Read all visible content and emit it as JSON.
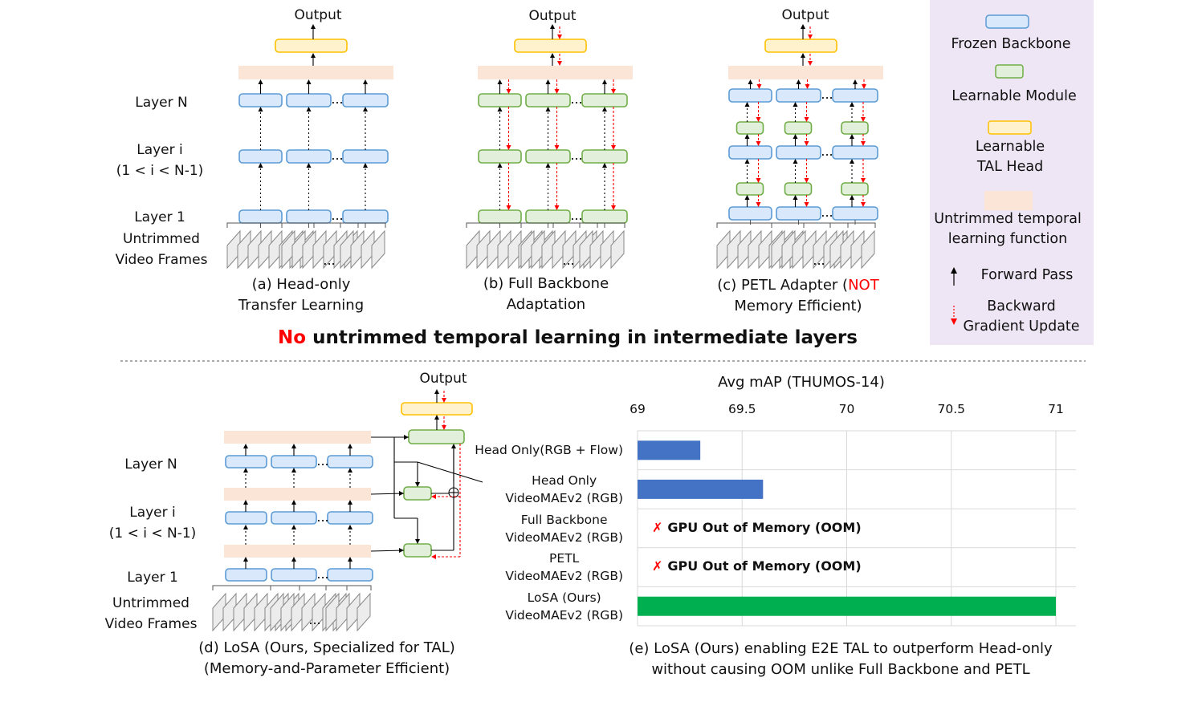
{
  "colors": {
    "frozen": "#dae8fc",
    "frozen_stroke": "#5b9bd5",
    "learnable": "#e2efda",
    "learnable_stroke": "#70ad47",
    "head": "#fff2cc",
    "head_stroke": "#ffc000",
    "temporal": "#fbe5d6",
    "legend_bg": "#efe6f5",
    "backward": "#ff0000",
    "bar_blue": "#4472c4",
    "bar_green": "#00b050"
  },
  "common": {
    "output": "Output",
    "ellipsis": "..."
  },
  "panel_a": {
    "layer_n": "Layer N",
    "layer_i": "Layer i\n(1 < i < N-1)",
    "layer_1": "Layer 1",
    "frames": "Untrimmed\nVideo Frames",
    "caption": "(a) Head-only\nTransfer Learning"
  },
  "panel_b": {
    "caption": "(b) Full Backbone\nAdaptation"
  },
  "panel_c": {
    "caption_pre": "(c) PETL Adapter (",
    "caption_red": "NOT",
    "caption_post": "Memory Efficient)"
  },
  "banner": {
    "red": "No",
    "rest": " untrimmed temporal learning in intermediate layers"
  },
  "legend": {
    "frozen": "Frozen Backbone",
    "learnable": "Learnable Module",
    "head": "Learnable\nTAL Head",
    "temporal": "Untrimmed temporal\nlearning function",
    "forward": "Forward Pass",
    "backward": "Backward\nGradient Update"
  },
  "panel_d": {
    "layer_n": "Layer N",
    "layer_i": "Layer i\n(1 < i < N-1)",
    "layer_1": "Layer 1",
    "frames": "Untrimmed\nVideo Frames",
    "caption": "(d) LoSA (Ours, Specialized for TAL)\n(Memory-and-Parameter Efficient)"
  },
  "panel_e": {
    "caption": "(e) LoSA (Ours) enabling E2E TAL to outperform Head-only\nwithout causing OOM unlike Full Backbone and PETL"
  },
  "chart_data": {
    "type": "bar",
    "orientation": "horizontal",
    "title": "Avg mAP (THUMOS-14)",
    "xlim": [
      69,
      71
    ],
    "ticks": [
      "69",
      "69.5",
      "70",
      "70.5",
      "71"
    ],
    "grid": true,
    "categories": [
      "Head Only(RGB + Flow)",
      "Head Only\nVideoMAEv2 (RGB)",
      "Full Backbone\nVideoMAEv2 (RGB)",
      "PETL\nVideoMAEv2 (RGB)",
      "LoSA (Ours)\nVideoMAEv2 (RGB)"
    ],
    "values": [
      69.3,
      69.6,
      null,
      null,
      71.0
    ],
    "bar_colors": [
      "#4472c4",
      "#4472c4",
      null,
      null,
      "#00b050"
    ],
    "annotations": [
      null,
      null,
      "GPU Out of Memory (OOM)",
      "GPU Out of Memory (OOM)",
      null
    ],
    "annotation_mark": "✗"
  }
}
